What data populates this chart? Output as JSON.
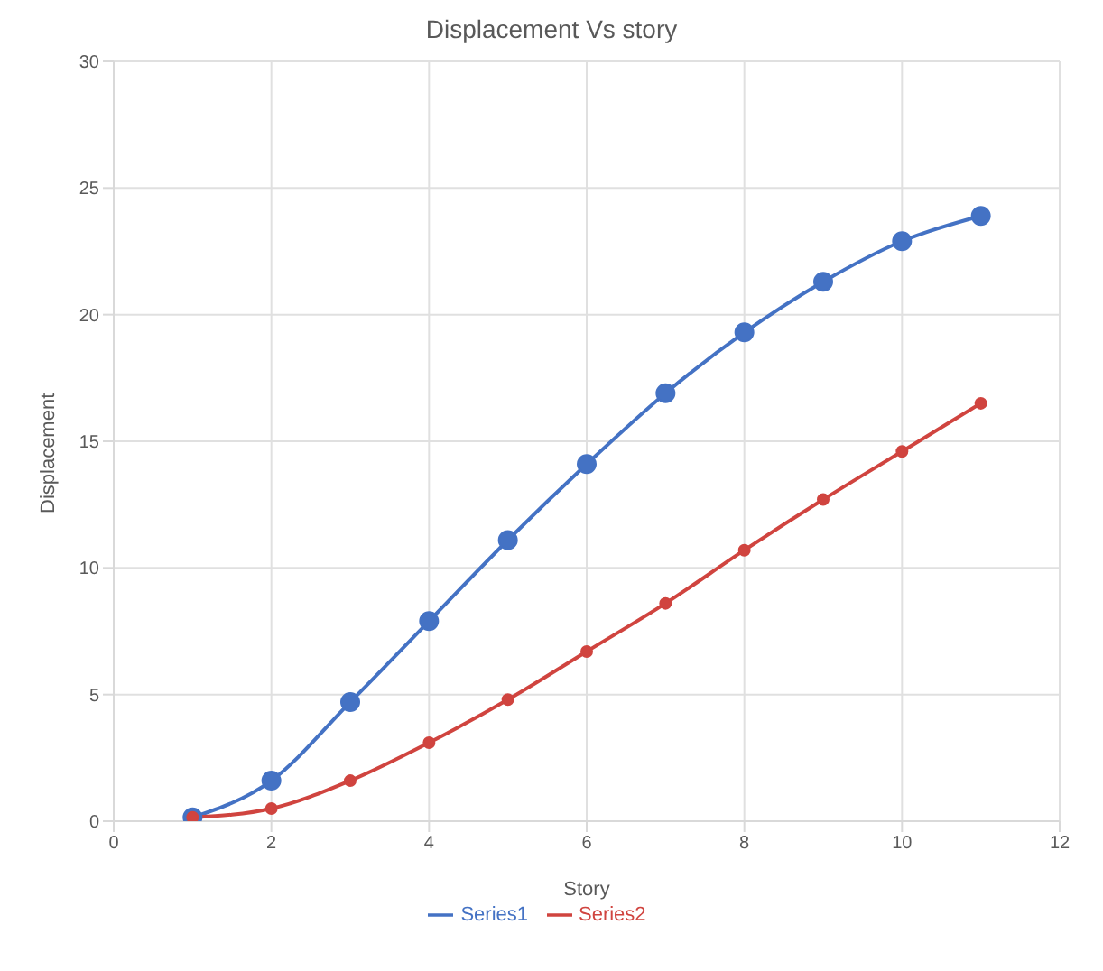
{
  "chart_data": {
    "type": "line",
    "title": "Displacement Vs story",
    "xlabel": "Story",
    "ylabel": "Displacement",
    "x": [
      1,
      2,
      3,
      4,
      5,
      6,
      7,
      8,
      9,
      10,
      11
    ],
    "series": [
      {
        "name": "Series1",
        "color": "#4472c4",
        "values": [
          0.15,
          1.6,
          4.7,
          7.9,
          11.1,
          14.1,
          16.9,
          19.3,
          21.3,
          22.9,
          23.9
        ]
      },
      {
        "name": "Series2",
        "color": "#d0443f",
        "values": [
          0.15,
          0.5,
          1.6,
          3.1,
          4.8,
          6.7,
          8.6,
          10.7,
          12.7,
          14.6,
          16.5
        ]
      }
    ],
    "xlim": [
      0,
      12
    ],
    "xticks": [
      0,
      2,
      4,
      6,
      8,
      10,
      12
    ],
    "ylim": [
      0,
      30
    ],
    "yticks": [
      0,
      5,
      10,
      15,
      20,
      25,
      30
    ],
    "grid": true,
    "legend": "bottom",
    "marker": "circle",
    "line_style": "solid"
  }
}
